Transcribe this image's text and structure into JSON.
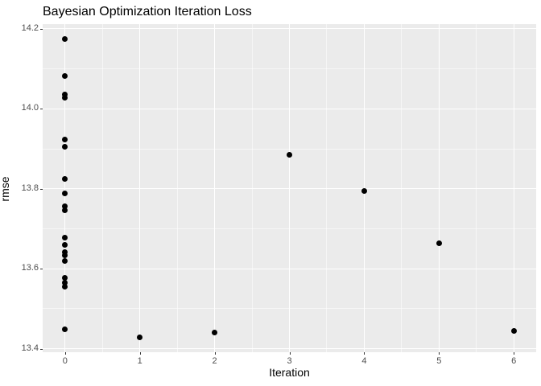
{
  "chart_data": {
    "type": "scatter",
    "title": "Bayesian Optimization Iteration Loss",
    "xlabel": "Iteration",
    "ylabel": "rmse",
    "xlim": [
      -0.3,
      6.3
    ],
    "ylim": [
      13.391,
      14.212
    ],
    "grid": true,
    "legend": "none",
    "x_ticks": [
      0,
      1,
      2,
      3,
      4,
      5,
      6
    ],
    "x_tick_labels": [
      "0",
      "1",
      "2",
      "3",
      "4",
      "5",
      "6"
    ],
    "x_minor_ticks": [
      0.5,
      1.5,
      2.5,
      3.5,
      4.5,
      5.5
    ],
    "y_ticks": [
      13.4,
      13.6,
      13.8,
      14.0,
      14.2
    ],
    "y_tick_labels": [
      "13.4",
      "13.6",
      "13.8",
      "14.0",
      "14.2"
    ],
    "y_minor_ticks": [
      13.5,
      13.7,
      13.9,
      14.1
    ],
    "points": [
      {
        "x": 0,
        "y": 14.175
      },
      {
        "x": 0,
        "y": 14.083
      },
      {
        "x": 0,
        "y": 14.035
      },
      {
        "x": 0,
        "y": 14.028
      },
      {
        "x": 0,
        "y": 13.924
      },
      {
        "x": 0,
        "y": 13.906
      },
      {
        "x": 0,
        "y": 13.824
      },
      {
        "x": 0,
        "y": 13.789
      },
      {
        "x": 0,
        "y": 13.757
      },
      {
        "x": 0,
        "y": 13.747
      },
      {
        "x": 0,
        "y": 13.677
      },
      {
        "x": 0,
        "y": 13.659
      },
      {
        "x": 0,
        "y": 13.642
      },
      {
        "x": 0,
        "y": 13.634
      },
      {
        "x": 0,
        "y": 13.619
      },
      {
        "x": 0,
        "y": 13.578
      },
      {
        "x": 0,
        "y": 13.566
      },
      {
        "x": 0,
        "y": 13.556
      },
      {
        "x": 0,
        "y": 13.449
      },
      {
        "x": 1,
        "y": 13.428
      },
      {
        "x": 2,
        "y": 13.441
      },
      {
        "x": 3,
        "y": 13.886
      },
      {
        "x": 4,
        "y": 13.795
      },
      {
        "x": 5,
        "y": 13.663
      },
      {
        "x": 6,
        "y": 13.444
      }
    ],
    "colors": {
      "panel_background": "#ebebeb",
      "gridline": "#ffffff",
      "point": "#000000",
      "tick_label": "#4d4d4d",
      "tick_mark": "#333333",
      "title": "#000000",
      "figure_background": "#ffffff"
    }
  }
}
